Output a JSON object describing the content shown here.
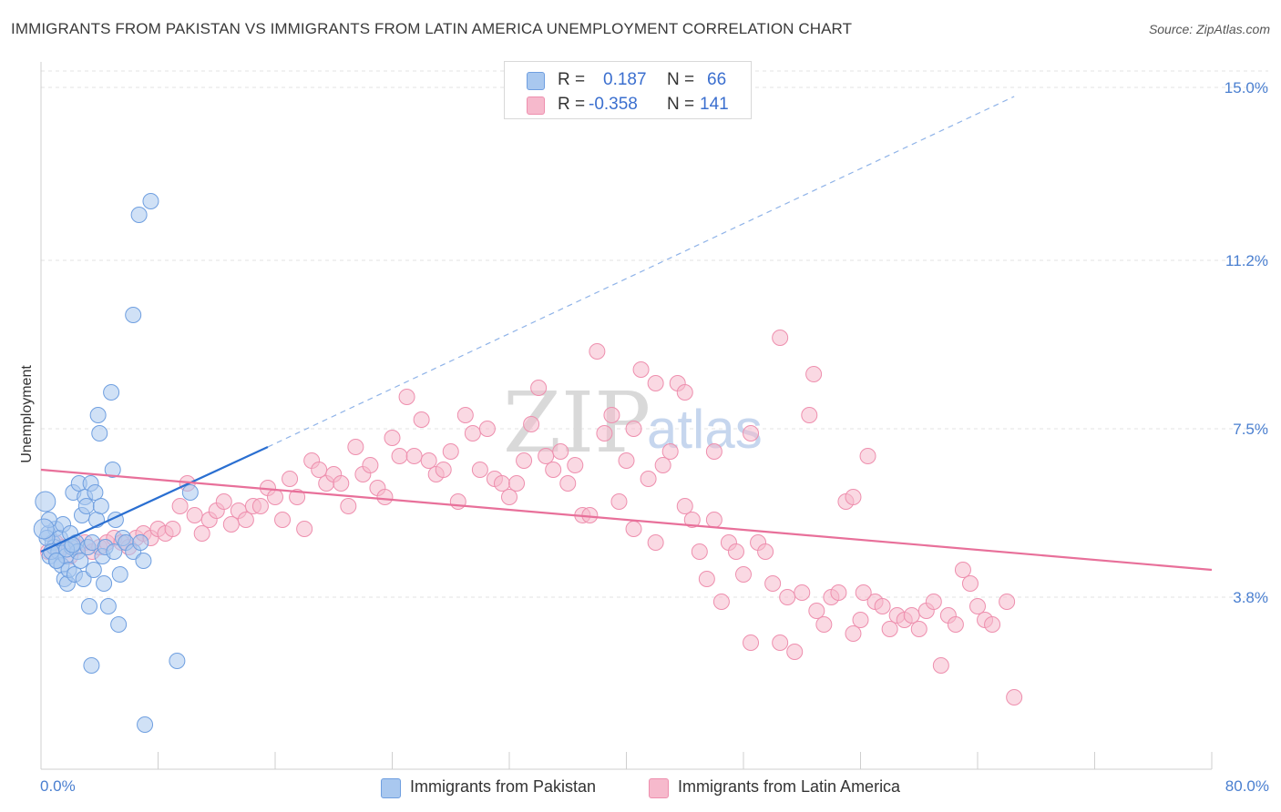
{
  "title": "IMMIGRANTS FROM PAKISTAN VS IMMIGRANTS FROM LATIN AMERICA UNEMPLOYMENT CORRELATION CHART",
  "source": "Source: ZipAtlas.com",
  "colors": {
    "pakistan_fill": "#a9c8ef",
    "pakistan_stroke": "#6f9fe0",
    "pakistan_line": "#2a6fd1",
    "latam_fill": "#f6b9cc",
    "latam_stroke": "#ee8fae",
    "latam_line": "#e8709a",
    "tick_text": "#4a7fd0"
  },
  "stats": {
    "rows": [
      {
        "r_label": "R =",
        "r_value": "0.187",
        "n_label": "N =",
        "n_value": "66"
      },
      {
        "r_label": "R =",
        "r_value": "-0.358",
        "n_label": "N =",
        "n_value": "141"
      }
    ]
  },
  "watermark": {
    "zip": "ZIP",
    "atlas": "atlas"
  },
  "legend": {
    "pakistan": "Immigrants from Pakistan",
    "latam": "Immigrants from Latin America"
  },
  "chart_data": {
    "type": "scatter",
    "title": "IMMIGRANTS FROM PAKISTAN VS IMMIGRANTS FROM LATIN AMERICA UNEMPLOYMENT CORRELATION CHART",
    "xlabel": "",
    "ylabel": "Unemployment",
    "xlim": [
      0,
      80
    ],
    "ylim": [
      0,
      15.5
    ],
    "x_tick_labels": [
      "0.0%",
      "80.0%"
    ],
    "y_ticks": [
      3.8,
      7.5,
      11.2,
      15.0
    ],
    "y_tick_labels": [
      "3.8%",
      "7.5%",
      "11.2%",
      "15.0%"
    ],
    "grid": true,
    "series": [
      {
        "name": "Immigrants from Pakistan",
        "R": 0.187,
        "N": 66,
        "trend": {
          "x0": 0,
          "y0": 4.8,
          "x1": 15.5,
          "y1": 7.1,
          "dashed_to_x": 66.5,
          "dashed_to_y": 14.8
        },
        "points": [
          [
            0.3,
            5.9
          ],
          [
            0.5,
            5.2
          ],
          [
            0.6,
            4.7
          ],
          [
            0.8,
            5.0
          ],
          [
            0.9,
            4.9
          ],
          [
            1.0,
            5.3
          ],
          [
            1.1,
            4.6
          ],
          [
            1.2,
            4.8
          ],
          [
            1.3,
            5.1
          ],
          [
            1.4,
            4.5
          ],
          [
            1.5,
            5.4
          ],
          [
            1.6,
            4.2
          ],
          [
            1.7,
            4.7
          ],
          [
            1.8,
            4.1
          ],
          [
            1.9,
            4.4
          ],
          [
            2.0,
            5.2
          ],
          [
            2.1,
            4.9
          ],
          [
            2.2,
            6.1
          ],
          [
            2.3,
            4.3
          ],
          [
            2.4,
            5.0
          ],
          [
            2.5,
            4.8
          ],
          [
            2.6,
            6.3
          ],
          [
            2.7,
            4.6
          ],
          [
            2.8,
            5.6
          ],
          [
            2.9,
            4.2
          ],
          [
            3.0,
            6.0
          ],
          [
            3.1,
            5.8
          ],
          [
            3.2,
            4.9
          ],
          [
            3.3,
            3.6
          ],
          [
            3.4,
            6.3
          ],
          [
            3.5,
            5.0
          ],
          [
            3.6,
            4.4
          ],
          [
            3.7,
            6.1
          ],
          [
            3.8,
            5.5
          ],
          [
            3.9,
            7.8
          ],
          [
            4.0,
            7.4
          ],
          [
            4.1,
            5.8
          ],
          [
            4.2,
            4.7
          ],
          [
            4.3,
            4.1
          ],
          [
            4.4,
            4.9
          ],
          [
            4.6,
            3.6
          ],
          [
            4.8,
            8.3
          ],
          [
            4.9,
            6.6
          ],
          [
            5.0,
            4.8
          ],
          [
            5.1,
            5.5
          ],
          [
            5.3,
            3.2
          ],
          [
            5.4,
            4.3
          ],
          [
            5.6,
            5.1
          ],
          [
            5.8,
            5.0
          ],
          [
            6.3,
            4.8
          ],
          [
            6.3,
            10.0
          ],
          [
            6.7,
            12.2
          ],
          [
            6.8,
            5.0
          ],
          [
            7.0,
            4.6
          ],
          [
            7.1,
            1.0
          ],
          [
            7.5,
            12.5
          ],
          [
            9.3,
            2.4
          ],
          [
            10.2,
            6.1
          ],
          [
            0.4,
            5.1
          ],
          [
            0.7,
            4.8
          ],
          [
            1.05,
            4.6
          ],
          [
            0.55,
            5.5
          ],
          [
            0.2,
            5.3
          ],
          [
            1.75,
            4.85
          ],
          [
            2.15,
            4.95
          ],
          [
            3.45,
            2.3
          ]
        ]
      },
      {
        "name": "Immigrants from Latin America",
        "R": -0.358,
        "N": 141,
        "trend": {
          "x0": 0,
          "y0": 6.6,
          "x1": 80,
          "y1": 4.4
        },
        "points": [
          [
            0.5,
            4.8
          ],
          [
            1.0,
            5.0
          ],
          [
            1.5,
            4.9
          ],
          [
            2.0,
            4.7
          ],
          [
            2.5,
            4.9
          ],
          [
            3.0,
            5.0
          ],
          [
            3.5,
            4.8
          ],
          [
            4.0,
            4.9
          ],
          [
            4.5,
            5.0
          ],
          [
            5.0,
            5.1
          ],
          [
            5.5,
            5.0
          ],
          [
            6.0,
            4.9
          ],
          [
            6.5,
            5.1
          ],
          [
            7.0,
            5.2
          ],
          [
            7.5,
            5.1
          ],
          [
            8.0,
            5.3
          ],
          [
            8.5,
            5.2
          ],
          [
            9.0,
            5.3
          ],
          [
            9.5,
            5.8
          ],
          [
            10.0,
            6.3
          ],
          [
            10.5,
            5.6
          ],
          [
            11.0,
            5.2
          ],
          [
            11.5,
            5.5
          ],
          [
            12.0,
            5.7
          ],
          [
            12.5,
            5.9
          ],
          [
            13.0,
            5.4
          ],
          [
            13.5,
            5.7
          ],
          [
            14.0,
            5.5
          ],
          [
            14.5,
            5.8
          ],
          [
            15.0,
            5.8
          ],
          [
            15.5,
            6.2
          ],
          [
            16.0,
            6.0
          ],
          [
            16.5,
            5.5
          ],
          [
            17.0,
            6.4
          ],
          [
            17.5,
            6.0
          ],
          [
            18.0,
            5.3
          ],
          [
            18.5,
            6.8
          ],
          [
            19.0,
            6.6
          ],
          [
            19.5,
            6.3
          ],
          [
            20.0,
            6.5
          ],
          [
            20.5,
            6.3
          ],
          [
            21.0,
            5.8
          ],
          [
            21.5,
            7.1
          ],
          [
            22.0,
            6.5
          ],
          [
            22.5,
            6.7
          ],
          [
            23.0,
            6.2
          ],
          [
            23.5,
            6.0
          ],
          [
            24.0,
            7.3
          ],
          [
            24.5,
            6.9
          ],
          [
            25.0,
            8.2
          ],
          [
            25.5,
            6.9
          ],
          [
            26.0,
            7.7
          ],
          [
            26.5,
            6.8
          ],
          [
            27.0,
            6.5
          ],
          [
            27.5,
            6.6
          ],
          [
            28.0,
            7.0
          ],
          [
            28.5,
            5.9
          ],
          [
            29.0,
            7.8
          ],
          [
            29.5,
            7.4
          ],
          [
            30.0,
            6.6
          ],
          [
            30.5,
            7.5
          ],
          [
            31.0,
            6.4
          ],
          [
            31.5,
            6.3
          ],
          [
            32.0,
            6.0
          ],
          [
            32.5,
            6.3
          ],
          [
            33.0,
            6.8
          ],
          [
            33.5,
            7.6
          ],
          [
            34.0,
            8.4
          ],
          [
            34.5,
            6.9
          ],
          [
            35.0,
            6.6
          ],
          [
            35.5,
            7.0
          ],
          [
            36.0,
            6.3
          ],
          [
            36.5,
            6.7
          ],
          [
            37.0,
            5.6
          ],
          [
            37.5,
            5.6
          ],
          [
            38.0,
            9.2
          ],
          [
            38.5,
            7.4
          ],
          [
            39.0,
            7.8
          ],
          [
            39.5,
            5.9
          ],
          [
            40.0,
            6.8
          ],
          [
            40.5,
            7.5
          ],
          [
            41.0,
            8.8
          ],
          [
            41.5,
            6.4
          ],
          [
            42.0,
            8.5
          ],
          [
            42.5,
            6.7
          ],
          [
            43.0,
            7.0
          ],
          [
            43.5,
            8.5
          ],
          [
            44.0,
            8.3
          ],
          [
            44.5,
            5.5
          ],
          [
            45.0,
            4.8
          ],
          [
            45.5,
            4.2
          ],
          [
            46.0,
            5.5
          ],
          [
            46.5,
            3.7
          ],
          [
            47.0,
            5.0
          ],
          [
            47.5,
            4.8
          ],
          [
            48.0,
            4.3
          ],
          [
            48.5,
            2.8
          ],
          [
            49.0,
            5.0
          ],
          [
            49.5,
            4.8
          ],
          [
            50.0,
            4.1
          ],
          [
            50.5,
            2.8
          ],
          [
            51.0,
            3.8
          ],
          [
            51.5,
            2.6
          ],
          [
            52.0,
            3.9
          ],
          [
            52.5,
            7.8
          ],
          [
            53.0,
            3.5
          ],
          [
            53.5,
            3.2
          ],
          [
            54.0,
            3.8
          ],
          [
            54.5,
            3.9
          ],
          [
            55.0,
            5.9
          ],
          [
            55.5,
            3.0
          ],
          [
            56.0,
            3.3
          ],
          [
            56.5,
            6.9
          ],
          [
            57.0,
            3.7
          ],
          [
            57.5,
            3.6
          ],
          [
            58.0,
            3.1
          ],
          [
            58.5,
            3.4
          ],
          [
            59.0,
            3.3
          ],
          [
            59.5,
            3.4
          ],
          [
            60.0,
            3.1
          ],
          [
            60.5,
            3.5
          ],
          [
            61.0,
            3.7
          ],
          [
            61.5,
            2.3
          ],
          [
            62.0,
            3.4
          ],
          [
            62.5,
            3.2
          ],
          [
            63.0,
            4.4
          ],
          [
            63.5,
            4.1
          ],
          [
            64.0,
            3.6
          ],
          [
            64.5,
            3.3
          ],
          [
            65.0,
            3.2
          ],
          [
            66.0,
            3.7
          ],
          [
            66.5,
            1.6
          ],
          [
            40.5,
            5.3
          ],
          [
            44.0,
            5.8
          ],
          [
            46.0,
            7.0
          ],
          [
            48.5,
            7.4
          ],
          [
            50.5,
            9.5
          ],
          [
            52.8,
            8.7
          ],
          [
            55.5,
            6.0
          ],
          [
            56.2,
            3.9
          ],
          [
            42.0,
            5.0
          ]
        ]
      }
    ]
  }
}
